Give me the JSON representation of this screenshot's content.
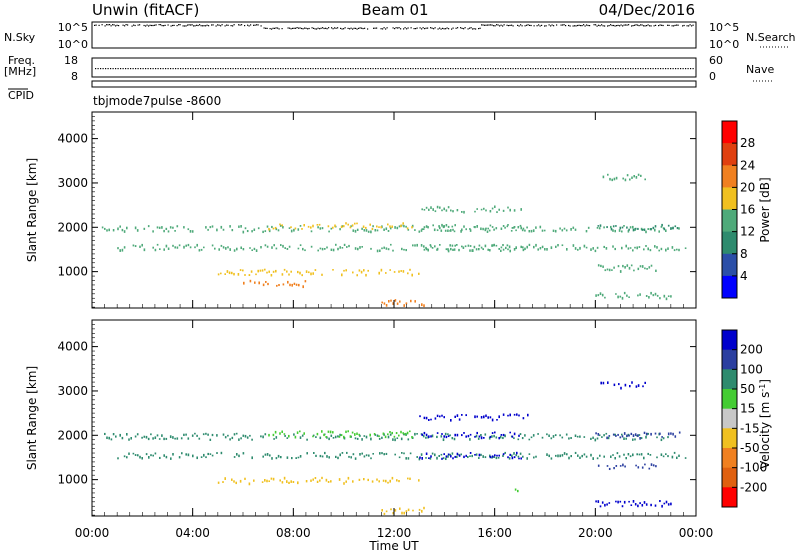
{
  "header": {
    "station": "Unwin (fitACF)",
    "beam": "Beam 01",
    "date": "04/Dec/2016"
  },
  "top_panels": {
    "nsky_label": "N.Sky",
    "nsky_ticks": [
      "10^5",
      "10^0"
    ],
    "nsearch_label": "N.Search",
    "freq_label_line1": "Freq.",
    "freq_label_line2": "[MHz]",
    "freq_ticks": [
      "18",
      "8"
    ],
    "freq_right_ticks": [
      "60",
      "0"
    ],
    "nave_label": "Nave",
    "cpid_label": "CPID",
    "mode_text": "tbjmode7pulse  -8600"
  },
  "x_axis": {
    "label": "Time UT",
    "ticks": [
      "00:00",
      "04:00",
      "08:00",
      "12:00",
      "16:00",
      "20:00",
      "00:00"
    ]
  },
  "colors": {
    "power_scale": [
      "#0000ff",
      "#2b4fa8",
      "#2e8b6e",
      "#4faa7a",
      "#f0c020",
      "#f08020",
      "#e04010",
      "#ff0000"
    ],
    "velocity_scale": [
      "#0000cc",
      "#2b3fa0",
      "#2e8b6e",
      "#44cc33",
      "#c8c8c8",
      "#f0c020",
      "#f08020",
      "#e06010",
      "#ff0000"
    ]
  },
  "chart_data": [
    {
      "type": "scatter",
      "panel": "power",
      "ylabel": "Slant Range [km]",
      "colorbar_label": "Power [dB]",
      "colorbar_ticks": [
        "28",
        "24",
        "20",
        "16",
        "12",
        "8",
        "4"
      ],
      "colorbar_range": [
        0,
        32
      ],
      "ylim": [
        180,
        4600
      ],
      "yticks": [
        "1000",
        "2000",
        "3000",
        "4000"
      ],
      "xlim_hours": [
        0,
        24
      ],
      "echo_bands": [
        {
          "range_km": 1990,
          "start_h": 0.3,
          "end_h": 23.3,
          "power_db": 13
        },
        {
          "range_km": 1560,
          "start_h": 1.0,
          "end_h": 23.6,
          "power_db": 14
        },
        {
          "range_km": 2430,
          "start_h": 13.0,
          "end_h": 17.3,
          "power_db": 12
        },
        {
          "range_km": 2020,
          "start_h": 13.0,
          "end_h": 17.2,
          "power_db": 13
        },
        {
          "range_km": 1560,
          "start_h": 13.0,
          "end_h": 17.2,
          "power_db": 12
        },
        {
          "range_km": 2030,
          "start_h": 20.0,
          "end_h": 23.4,
          "power_db": 11
        },
        {
          "range_km": 3150,
          "start_h": 20.2,
          "end_h": 22.1,
          "power_db": 15
        },
        {
          "range_km": 1100,
          "start_h": 20.1,
          "end_h": 22.4,
          "power_db": 15
        },
        {
          "range_km": 480,
          "start_h": 20.0,
          "end_h": 23.0,
          "power_db": 15
        },
        {
          "range_km": 1000,
          "start_h": 5.0,
          "end_h": 13.0,
          "power_db": 18
        },
        {
          "range_km": 320,
          "start_h": 11.5,
          "end_h": 13.2,
          "power_db": 20
        },
        {
          "range_km": 2050,
          "start_h": 7.0,
          "end_h": 12.7,
          "power_db": 18
        },
        {
          "range_km": 750,
          "start_h": 6.0,
          "end_h": 8.5,
          "power_db": 20
        }
      ]
    },
    {
      "type": "scatter",
      "panel": "velocity",
      "ylabel": "Slant Range [km]",
      "colorbar_label": "Velocity [m s^-1]",
      "colorbar_ticks": [
        "200",
        "100",
        "50",
        "15",
        "-15",
        "-50",
        "-100",
        "-200"
      ],
      "colorbar_range": [
        -250,
        250
      ],
      "ylim": [
        180,
        4600
      ],
      "yticks": [
        "1000",
        "2000",
        "3000",
        "4000"
      ],
      "xlim_hours": [
        0,
        24
      ],
      "echo_bands": [
        {
          "range_km": 1990,
          "start_h": 0.3,
          "end_h": 23.3,
          "velocity": 120
        },
        {
          "range_km": 1560,
          "start_h": 1.0,
          "end_h": 23.6,
          "velocity": 90
        },
        {
          "range_km": 2430,
          "start_h": 13.0,
          "end_h": 17.3,
          "velocity": 220
        },
        {
          "range_km": 2020,
          "start_h": 13.0,
          "end_h": 17.2,
          "velocity": 200
        },
        {
          "range_km": 1560,
          "start_h": 13.0,
          "end_h": 17.2,
          "velocity": 200
        },
        {
          "range_km": 2030,
          "start_h": 20.0,
          "end_h": 23.4,
          "velocity": 180
        },
        {
          "range_km": 3150,
          "start_h": 20.2,
          "end_h": 22.1,
          "velocity": 210
        },
        {
          "range_km": 1300,
          "start_h": 20.1,
          "end_h": 22.4,
          "velocity": 150
        },
        {
          "range_km": 480,
          "start_h": 20.0,
          "end_h": 23.0,
          "velocity": 220
        },
        {
          "range_km": 800,
          "start_h": 16.8,
          "end_h": 17.1,
          "velocity": 40
        },
        {
          "range_km": 1000,
          "start_h": 5.0,
          "end_h": 13.0,
          "velocity": -30
        },
        {
          "range_km": 320,
          "start_h": 11.5,
          "end_h": 13.2,
          "velocity": -60
        },
        {
          "range_km": 2050,
          "start_h": 7.0,
          "end_h": 12.7,
          "velocity": 60
        }
      ]
    }
  ]
}
